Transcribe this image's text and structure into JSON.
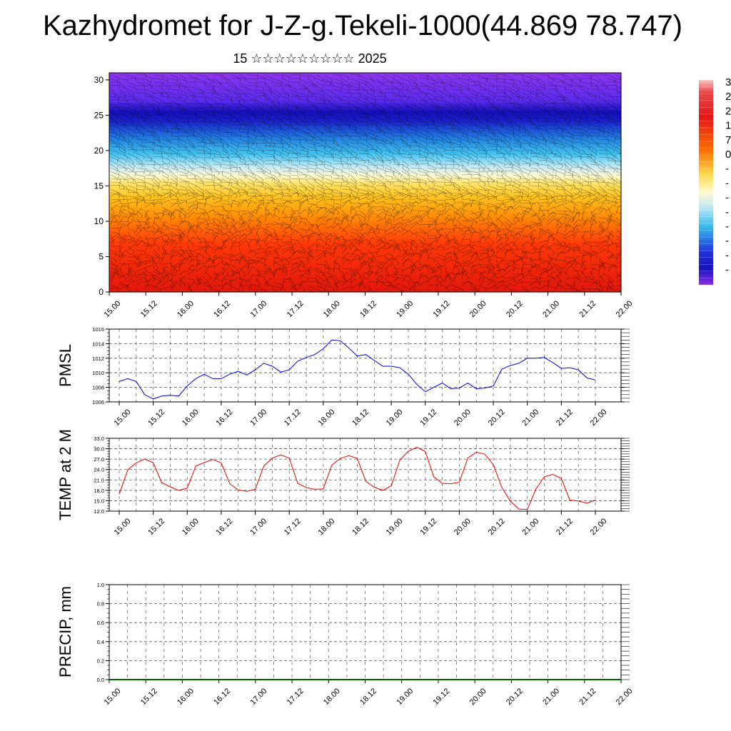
{
  "title": "Kazhydromet for J-Z-g.Tekeli-1000(44.869 78.747)",
  "subtitle": "15 ☆☆☆☆☆☆☆☆☆ 2025",
  "chart_data": [
    {
      "type": "heatmap",
      "panel": "cross-section with wind barbs",
      "x_tick_labels": [
        "15.00",
        "15.12",
        "16.00",
        "16.12",
        "17.00",
        "17.12",
        "18.00",
        "18.12",
        "19.00",
        "19.12",
        "20.00",
        "20.12",
        "21.00",
        "21.12",
        "22.00"
      ],
      "y_ticks": [
        0,
        5,
        10,
        15,
        20,
        25,
        30
      ],
      "ylim": [
        0,
        31
      ],
      "colorbar_labels": [
        "3",
        "2",
        "2",
        "1",
        "7",
        "0",
        "-",
        "-",
        "-",
        "-",
        "-",
        "-",
        "-",
        "-"
      ],
      "colors": {
        "top": "#8a2be2",
        "upper": "#1a1acc",
        "mid_blue": "#3fc0f0",
        "pale": "#ffffc0",
        "yellow": "#ffd12a",
        "orange": "#ff7a00",
        "red": "#e41c0c"
      }
    },
    {
      "type": "line",
      "ylabel": "PMSL",
      "x_tick_labels": [
        "15.00",
        "15.12",
        "16.00",
        "16.12",
        "17.00",
        "17.12",
        "18.00",
        "18.12",
        "19.00",
        "19.12",
        "20.00",
        "20.12",
        "21.00",
        "21.12",
        "22.00"
      ],
      "y_tick_labels": [
        "1006",
        "1008",
        "1010",
        "1012",
        "1014",
        "1016"
      ],
      "ylim": [
        1006,
        1016
      ],
      "color": "#0000ee",
      "values": [
        1008.8,
        1009.2,
        1008.8,
        1007.0,
        1006.4,
        1006.8,
        1006.9,
        1006.8,
        1008.2,
        1009.2,
        1009.8,
        1009.2,
        1009.2,
        1009.8,
        1010.2,
        1009.7,
        1010.4,
        1011.3,
        1010.9,
        1010.1,
        1010.4,
        1011.6,
        1012.1,
        1012.5,
        1013.3,
        1014.5,
        1014.4,
        1013.4,
        1012.3,
        1012.5,
        1011.7,
        1010.9,
        1010.9,
        1010.7,
        1009.8,
        1008.4,
        1007.4,
        1008.0,
        1008.6,
        1007.8,
        1007.9,
        1008.6,
        1007.8,
        1007.9,
        1008.2,
        1010.5,
        1011.0,
        1011.3,
        1012.0,
        1012.0,
        1012.1,
        1011.4,
        1010.6,
        1010.7,
        1010.4,
        1009.3,
        1009.0
      ]
    },
    {
      "type": "line",
      "ylabel": "TEMP at 2 M",
      "x_tick_labels": [
        "15.00",
        "15.12",
        "16.00",
        "16.12",
        "17.00",
        "17.12",
        "18.00",
        "18.12",
        "19.00",
        "19.12",
        "20.00",
        "20.12",
        "21.00",
        "21.12",
        "22.00"
      ],
      "y_tick_labels": [
        "12.0",
        "15.0",
        "18.0",
        "21.0",
        "24.0",
        "27.0",
        "30.0",
        "33.0"
      ],
      "ylim": [
        12,
        33
      ],
      "color": "#ee0000",
      "values": [
        16.9,
        23.9,
        25.9,
        27.0,
        26.0,
        20.2,
        19.0,
        18.0,
        18.6,
        25.0,
        26.0,
        26.9,
        25.9,
        19.9,
        18.1,
        17.7,
        18.3,
        25.0,
        27.3,
        28.2,
        27.3,
        20.0,
        18.8,
        18.3,
        18.4,
        25.3,
        27.2,
        28.0,
        27.2,
        20.6,
        18.9,
        18.0,
        19.3,
        26.7,
        29.3,
        30.4,
        29.2,
        21.9,
        20.0,
        19.9,
        20.3,
        27.3,
        29.0,
        28.4,
        25.4,
        18.8,
        14.9,
        12.6,
        12.5,
        18.3,
        21.9,
        22.6,
        21.4,
        15.2,
        14.9,
        14.3,
        15.2
      ]
    },
    {
      "type": "line",
      "ylabel": "PRECIP, mm",
      "x_tick_labels": [
        "15.00",
        "15.12",
        "16.00",
        "16.12",
        "17.00",
        "17.12",
        "18.00",
        "18.12",
        "19.00",
        "19.12",
        "20.00",
        "20.12",
        "21.00",
        "21.12",
        "22.00"
      ],
      "y_tick_labels": [
        "0.0",
        "0.2",
        "0.4",
        "0.6",
        "0.8",
        "1.0"
      ],
      "ylim": [
        0,
        1
      ],
      "color": "#006400",
      "values": [
        0,
        0,
        0,
        0,
        0,
        0,
        0,
        0,
        0,
        0,
        0,
        0,
        0,
        0,
        0,
        0,
        0,
        0,
        0,
        0,
        0,
        0,
        0,
        0,
        0,
        0,
        0,
        0,
        0,
        0,
        0,
        0,
        0,
        0,
        0,
        0,
        0,
        0,
        0,
        0,
        0,
        0,
        0,
        0,
        0,
        0,
        0,
        0,
        0,
        0,
        0,
        0,
        0,
        0,
        0,
        0,
        0
      ]
    }
  ]
}
